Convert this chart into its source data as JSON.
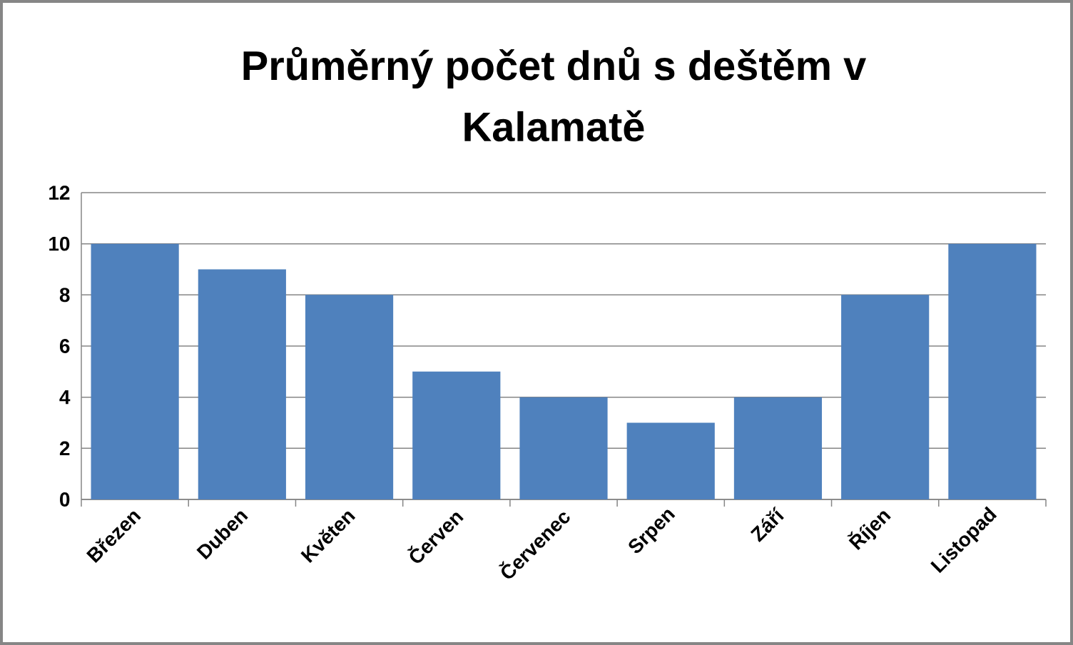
{
  "chart_data": {
    "type": "bar",
    "title": "Průměrný počet dnů s deštěm v Kalamatě",
    "categories": [
      "Březen",
      "Duben",
      "Květen",
      "Červen",
      "Červenec",
      "Srpen",
      "Září",
      "Říjen",
      "Listopad"
    ],
    "values": [
      10,
      9,
      8,
      5,
      4,
      3,
      4,
      8,
      10
    ],
    "color": "#4f81bd",
    "ylim": [
      0,
      12
    ],
    "yticks": [
      0,
      2,
      4,
      6,
      8,
      10,
      12
    ],
    "grid": "y"
  }
}
